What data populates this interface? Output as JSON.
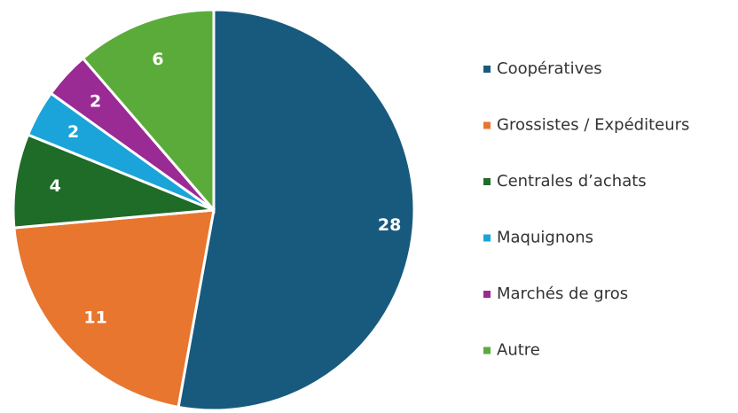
{
  "chart_data": {
    "type": "pie",
    "categories": [
      "Coopératives",
      "Grossistes / Expéditeurs",
      "Centrales d’achats",
      "Maquignons",
      "Marchés de gros",
      "Autre"
    ],
    "values": [
      28,
      11,
      4,
      2,
      2,
      6
    ],
    "colors": [
      "#185a7e",
      "#e8762f",
      "#1f6b28",
      "#1ba4d9",
      "#9a2a94",
      "#5bab3b"
    ],
    "legend": "right"
  }
}
